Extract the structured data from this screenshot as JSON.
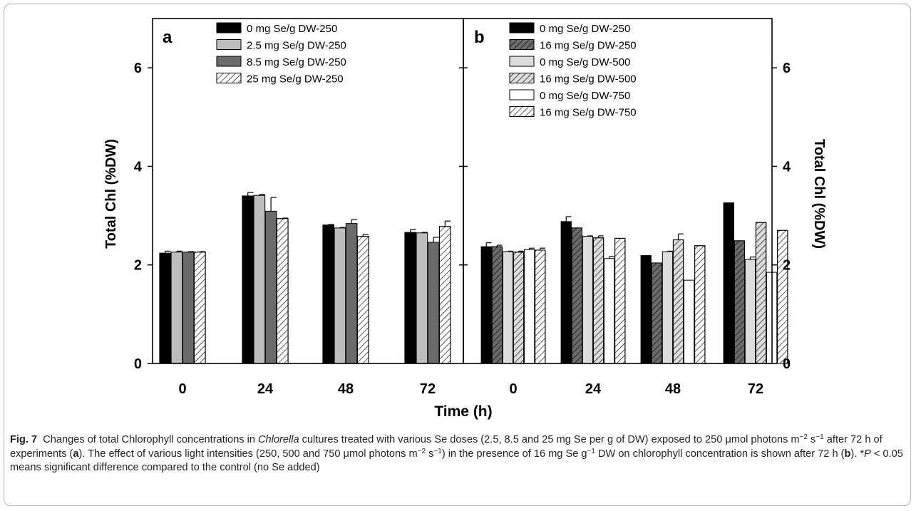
{
  "chart_data": [
    {
      "panel": "a",
      "type": "bar",
      "categories": [
        "0",
        "24",
        "48",
        "72"
      ],
      "series": [
        {
          "name": "0 mg Se/g DW-250",
          "values": [
            2.24,
            3.4,
            2.81,
            2.66
          ],
          "errors": [
            0.04,
            0.07,
            0.01,
            0.06
          ],
          "fill": "#000000",
          "pattern": "none"
        },
        {
          "name": "2.5 mg Se/g DW-250",
          "values": [
            2.26,
            3.41,
            2.75,
            2.65
          ],
          "errors": [
            0.02,
            0.02,
            0.01,
            0.01
          ],
          "fill": "#bdbdbd",
          "pattern": "none"
        },
        {
          "name": "8.5 mg Se/g DW-250",
          "values": [
            2.26,
            3.09,
            2.84,
            2.46
          ],
          "errors": [
            0.01,
            0.28,
            0.08,
            0.1
          ],
          "fill": "#6b6b6b",
          "pattern": "none"
        },
        {
          "name": "25 mg Se/g DW-250",
          "values": [
            2.26,
            2.94,
            2.58,
            2.78
          ],
          "errors": [
            0.01,
            0.01,
            0.04,
            0.11
          ],
          "fill": "#ffffff",
          "pattern": "hatch"
        }
      ],
      "ylabel": "Total Chl (%DW)",
      "ylim": [
        0,
        7
      ],
      "yticks": [
        0,
        2,
        4,
        6
      ],
      "legend": "top-center"
    },
    {
      "panel": "b",
      "type": "bar",
      "categories": [
        "0",
        "24",
        "48",
        "72"
      ],
      "series": [
        {
          "name": "0 mg Se/g DW-250",
          "values": [
            2.37,
            2.88,
            2.19,
            3.26
          ],
          "errors": [
            0.08,
            0.1,
            0.0,
            0.0
          ],
          "fill": "#000000",
          "pattern": "none"
        },
        {
          "name": "16 mg Se/g DW-250",
          "values": [
            2.37,
            2.75,
            2.04,
            2.49
          ],
          "errors": [
            0.03,
            0.0,
            0.0,
            0.0
          ],
          "fill": "#6b6b6b",
          "pattern": "hatch"
        },
        {
          "name": "0 mg Se/g DW-500",
          "values": [
            2.27,
            2.58,
            2.27,
            2.11
          ],
          "errors": [
            0.01,
            0.01,
            0.01,
            0.05
          ],
          "fill": "#dcdcdc",
          "pattern": "none"
        },
        {
          "name": "16 mg Se/g DW-500",
          "values": [
            2.26,
            2.55,
            2.51,
            2.86
          ],
          "errors": [
            0.02,
            0.04,
            0.12,
            0.0
          ],
          "fill": "#dcdcdc",
          "pattern": "hatch"
        },
        {
          "name": "0 mg Se/g DW-750",
          "values": [
            2.31,
            2.13,
            1.69,
            1.85
          ],
          "errors": [
            0.03,
            0.04,
            0.0,
            0.0
          ],
          "fill": "#ffffff",
          "pattern": "none"
        },
        {
          "name": "16 mg Se/g DW-750",
          "values": [
            2.3,
            2.54,
            2.39,
            2.7
          ],
          "errors": [
            0.04,
            0.0,
            0.0,
            0.0
          ],
          "fill": "#ffffff",
          "pattern": "hatch"
        }
      ],
      "ylabel": "Total Chl (%DW)",
      "ylim": [
        0,
        7
      ],
      "yticks": [
        0,
        2,
        4,
        6
      ],
      "legend": "top-center"
    }
  ],
  "figure": {
    "xlabel": "Time (h)"
  },
  "caption": {
    "label": "Fig. 7",
    "t1": "Changes of total Chlorophyll concentrations in ",
    "t2": "Chlorella",
    "t3": " cultures treated with various Se doses (2.5, 8.5 and 25 mg Se per g of DW) exposed to 250 μmol photons m",
    "sup1": "−2",
    "t4": " s",
    "sup2": "−1",
    "t5": " after 72 h of experiments (",
    "ref_a": "a",
    "t6": "). The effect of various light intensities (250, 500 and 750 μmol photons m",
    "sup3": "−2",
    "t7": " s",
    "sup4": "−1",
    "t8": ") in the presence of 16 mg Se g",
    "sup5": "−1",
    "t9": " DW on chlorophyll concentration is shown after 72 h (",
    "ref_b": "b",
    "t10": "). *",
    "t11": "P",
    "t12": " < 0.05 means significant difference compared to the control (no Se added)"
  }
}
